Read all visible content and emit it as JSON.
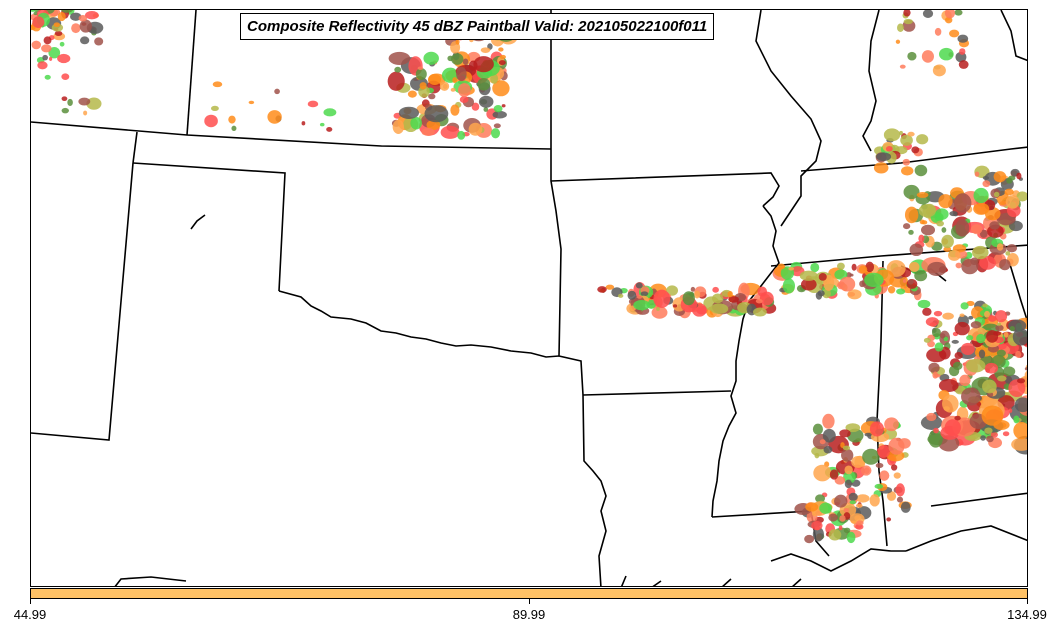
{
  "title": "Composite Reflectivity 45 dBZ Paintball Valid: 202105022100f011",
  "colorbar": {
    "color": "#ffc266",
    "ticks": [
      "44.99",
      "89.99",
      "134.99"
    ]
  },
  "palette": {
    "red": "#ff4d4d",
    "orange": "#ff8c1a",
    "light_orange": "#ffa64d",
    "salmon": "#ff7b5c",
    "olive": "#b5b84a",
    "green": "#4dd94d",
    "dark_green": "#5a8f3c",
    "brown": "#a0524a",
    "dark_gray": "#5a5a5a",
    "dark_red": "#b81f1f"
  },
  "map": {
    "background": "#ffffff",
    "border_color": "#000000"
  }
}
